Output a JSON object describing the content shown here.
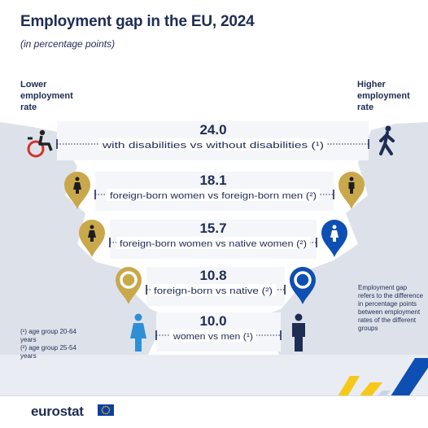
{
  "header": {
    "title": "Employment gap in the EU, 2024",
    "subtitle": "(in percentage points)"
  },
  "side_labels": {
    "left": "Lower employment rate",
    "right": "Higher employment rate"
  },
  "notes": {
    "footnote_1": "(¹) age group 20-64 years",
    "footnote_2": "(²) age group 25-54 years",
    "gap_definition": "Employment gap refers to the difference in percentage points between employment rates of the different groups"
  },
  "footer": {
    "logo_text": "eurostat"
  },
  "colors": {
    "navy": "#1f2d54",
    "gold": "#c9a84c",
    "blue": "#0e4fb4",
    "light_blue": "#2f8fd6",
    "red": "#d2322d",
    "mountain": "#dde2ea",
    "gap_bg": "#f5f6f9"
  },
  "chart_data": {
    "type": "bar",
    "title": "Employment gap in the EU, 2024",
    "subtitle": "(in percentage points)",
    "unit": "percentage points",
    "categories": [
      "with disabilities vs without disabilities (¹)",
      "foreign-born women vs foreign-born men (²)",
      "foreign-born women vs native women (²)",
      "foreign-born vs native (²)",
      "women vs men (¹)"
    ],
    "values": [
      24.0,
      18.1,
      15.7,
      10.8,
      10.0
    ],
    "value_labels": [
      "24.0",
      "18.1",
      "15.7",
      "10.8",
      "10.0"
    ],
    "rows": [
      {
        "value": 24.0,
        "label": "24.0",
        "category": "with disabilities vs without disabilities (¹)",
        "lower_icon": "wheelchair-icon",
        "higher_icon": "walking-person-icon"
      },
      {
        "value": 18.1,
        "label": "18.1",
        "category": "foreign-born women vs foreign-born men (²)",
        "lower_icon": "gold-pin-woman-icon",
        "higher_icon": "gold-pin-man-icon"
      },
      {
        "value": 15.7,
        "label": "15.7",
        "category": "foreign-born women vs native women (²)",
        "lower_icon": "gold-pin-woman-icon",
        "higher_icon": "blue-pin-woman-icon"
      },
      {
        "value": 10.8,
        "label": "10.8",
        "category": "foreign-born vs native (²)",
        "lower_icon": "gold-pin-ring-icon",
        "higher_icon": "blue-pin-ring-icon"
      },
      {
        "value": 10.0,
        "label": "10.0",
        "category": "women vs men (¹)",
        "lower_icon": "woman-icon",
        "higher_icon": "man-icon"
      }
    ],
    "axis_left_label": "Lower employment rate",
    "axis_right_label": "Higher employment rate"
  }
}
